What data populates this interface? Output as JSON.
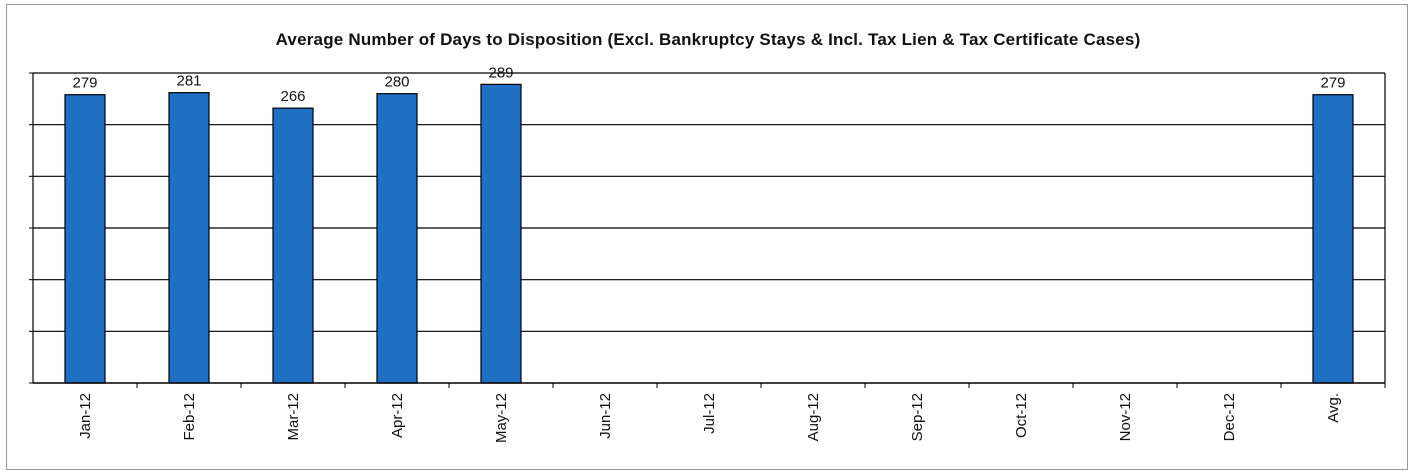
{
  "chart_data": {
    "type": "bar",
    "title": "Average Number of Days to Disposition  (Excl. Bankruptcy Stays & Incl. Tax Lien & Tax Certificate Cases)",
    "categories": [
      "Jan-12",
      "Feb-12",
      "Mar-12",
      "Apr-12",
      "May-12",
      "Jun-12",
      "Jul-12",
      "Aug-12",
      "Sep-12",
      "Oct-12",
      "Nov-12",
      "Dec-12",
      "Avg."
    ],
    "values": [
      279,
      281,
      266,
      280,
      289,
      null,
      null,
      null,
      null,
      null,
      null,
      null,
      279
    ],
    "data_labels": [
      "279",
      "281",
      "266",
      "280",
      "289",
      "",
      "",
      "",
      "",
      "",
      "",
      "",
      "279"
    ],
    "ylim": [
      0,
      300
    ],
    "gridline_step": 50,
    "grid": true,
    "legend": "none",
    "bar_color": "#1f6fc4",
    "xlabel": "",
    "ylabel": ""
  }
}
